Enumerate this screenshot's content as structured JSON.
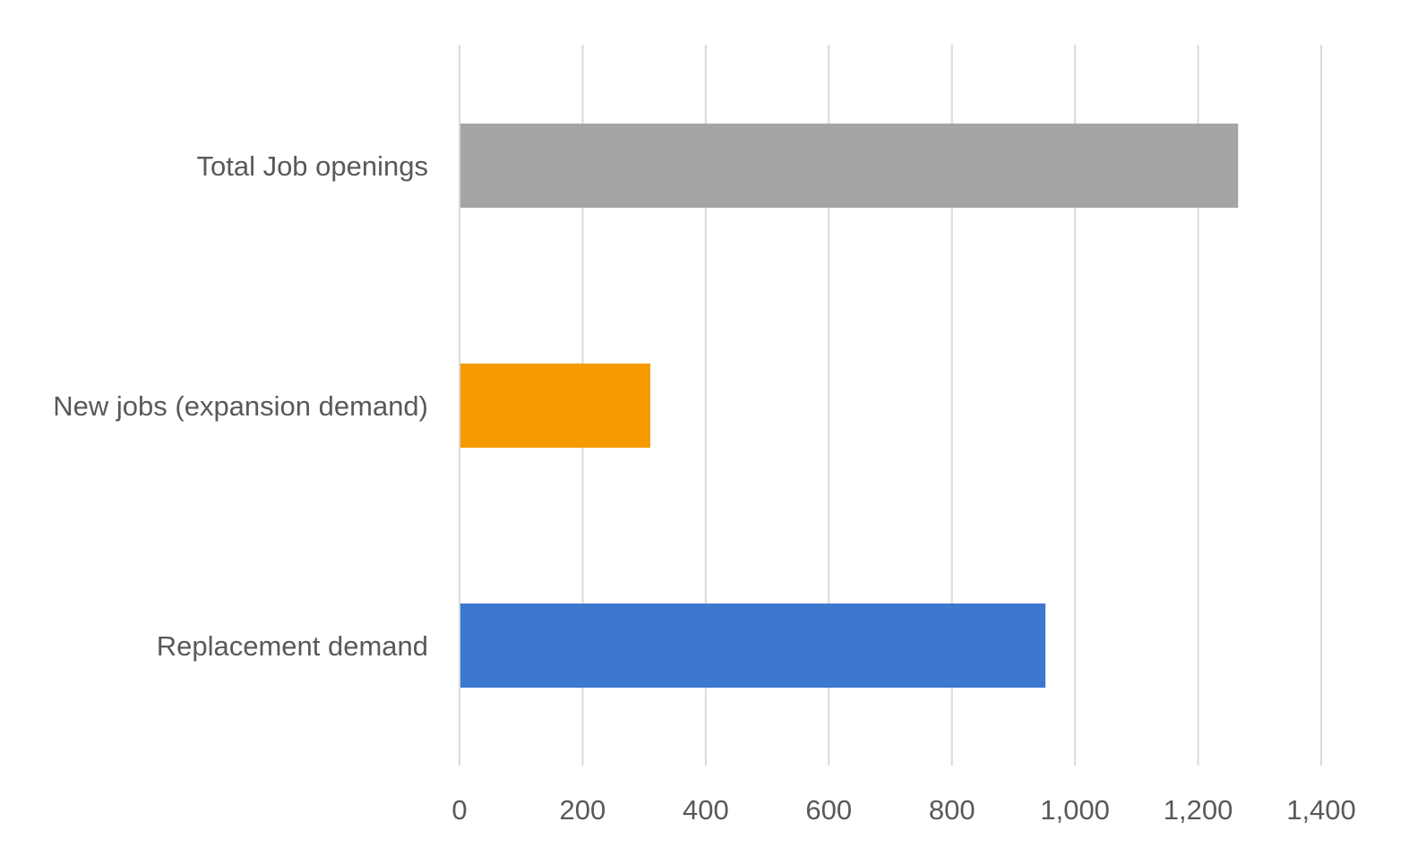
{
  "chart_data": {
    "type": "bar",
    "orientation": "horizontal",
    "title": "",
    "xlabel": "",
    "ylabel": "",
    "categories": [
      "Total Job openings",
      "New jobs (expansion demand)",
      "Replacement demand"
    ],
    "values": [
      1265,
      310,
      952
    ],
    "colors": [
      "#a5a5a5",
      "#f59b00",
      "#3d78cf"
    ],
    "xlim": [
      0,
      1400
    ],
    "x_ticks": [
      0,
      200,
      400,
      600,
      800,
      1000,
      1200,
      1400
    ],
    "x_tick_labels": [
      "0",
      "200",
      "400",
      "600",
      "800",
      "1,000",
      "1,200",
      "1,400"
    ],
    "grid": true,
    "legend": "none"
  }
}
